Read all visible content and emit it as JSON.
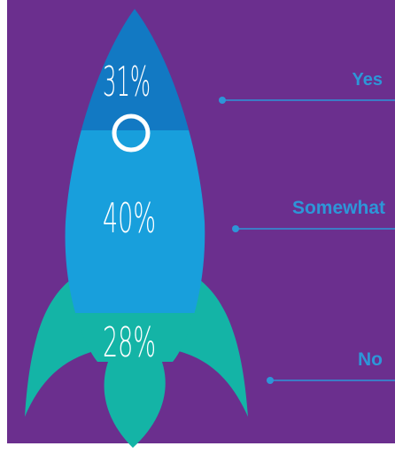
{
  "colors": {
    "background": "#6b2f8e",
    "frame": "#ffffff",
    "top_segment": "#1279c3",
    "middle_segment": "#189fdc",
    "bottom_segment": "#14b4a6",
    "label": "#2d96d8",
    "leader_line": "#2d96d8",
    "text": "#ffffff"
  },
  "chart_data": {
    "type": "bar",
    "categories": [
      "Yes",
      "Somewhat",
      "No"
    ],
    "values": [
      31,
      40,
      28
    ],
    "value_labels": [
      "31%",
      "40%",
      "28%"
    ],
    "unit": "%"
  }
}
